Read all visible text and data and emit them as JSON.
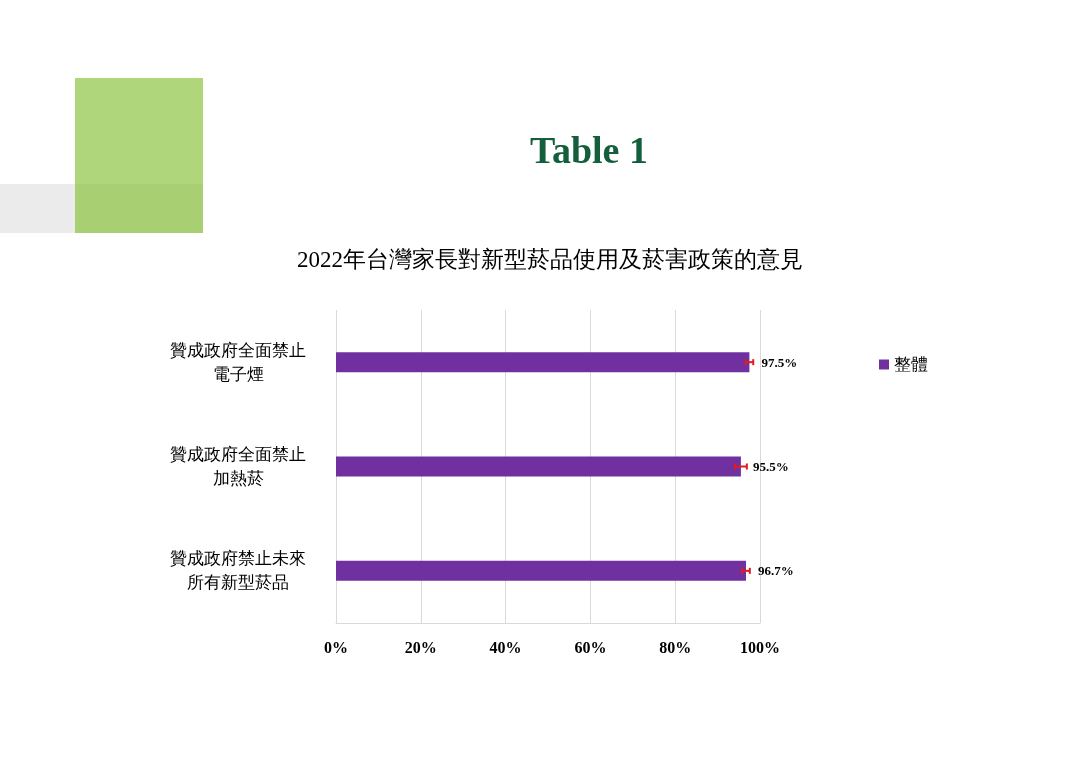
{
  "chart_data": {
    "type": "bar",
    "title": "Table 1",
    "subtitle": "2022年台灣家長對新型菸品使用及菸害政策的意見",
    "orientation": "horizontal",
    "categories": [
      "贊成政府全面禁止電子煙",
      "贊成政府全面禁止加熱菸",
      "贊成政府禁止未來所有新型菸品"
    ],
    "series": [
      {
        "name": "整體",
        "color": "#7030a0",
        "values": [
          97.5,
          95.5,
          96.7
        ],
        "errors": [
          0.9,
          1.4,
          0.9
        ],
        "value_labels": [
          "97.5%",
          "95.5%",
          "96.7%"
        ]
      }
    ],
    "xlim": [
      0,
      100
    ],
    "xticks": [
      {
        "value": 0,
        "label": "0%"
      },
      {
        "value": 20,
        "label": "20%"
      },
      {
        "value": 40,
        "label": "40%"
      },
      {
        "value": 60,
        "label": "60%"
      },
      {
        "value": 80,
        "label": "80%"
      },
      {
        "value": 100,
        "label": "100%"
      }
    ],
    "grid": "x",
    "legend": "top right"
  }
}
